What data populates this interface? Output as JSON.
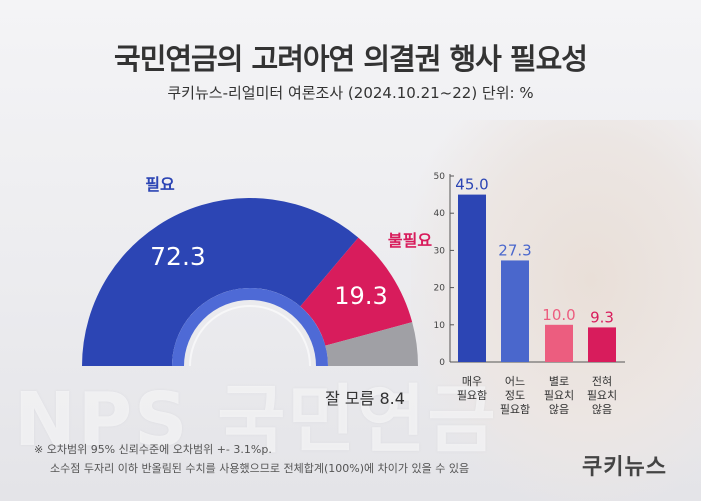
{
  "title": "국민연금의 고려아연 의결권 행사 필요성",
  "subtitle": "쿠키뉴스-리얼미터 여론조사 (2024.10.21~22) 단위: %",
  "watermark": "NPS 국민연금",
  "footnote": {
    "line1": "※ 오차범위 95% 신뢰수준에 오차범위 +- 3.1%p.",
    "line2": "소수점 두자리 이하 반올림된 수치를 사용했으므로 전체합계(100%)에 차이가 있을 수 있음"
  },
  "brand": "쿠키뉴스",
  "colors": {
    "blue": "#2c45b4",
    "blue_light": "#4a67cc",
    "pink": "#d81c5c",
    "pink_light": "#ec5d7f",
    "gray": "#a0a0a5"
  },
  "chart_data": [
    {
      "type": "pie",
      "style": "half-donut",
      "slices": [
        {
          "name": "필요",
          "label": "필요",
          "value": 72.3,
          "color": "#2c45b4"
        },
        {
          "name": "불필요",
          "label": "불필요",
          "value": 19.3,
          "color": "#d81c5c"
        },
        {
          "name": "잘 모름",
          "label": "잘 모름 8.4",
          "value": 8.4,
          "color": "#a0a0a5"
        }
      ]
    },
    {
      "type": "bar",
      "categories": [
        [
          "매우",
          "필요함"
        ],
        [
          "어느",
          "정도",
          "필요함"
        ],
        [
          "별로",
          "필요치",
          "않음"
        ],
        [
          "전혀",
          "필요치",
          "않음"
        ]
      ],
      "values": [
        45.0,
        27.3,
        10.0,
        9.3
      ],
      "value_labels": [
        "45.0",
        "27.3",
        "10.0",
        "9.3"
      ],
      "colors": [
        "#2c45b4",
        "#4a67cc",
        "#ec5d7f",
        "#d81c5c"
      ],
      "ylim": [
        0,
        50
      ],
      "yticks": [
        0,
        10,
        20,
        30,
        40,
        50
      ],
      "grid": false
    }
  ]
}
